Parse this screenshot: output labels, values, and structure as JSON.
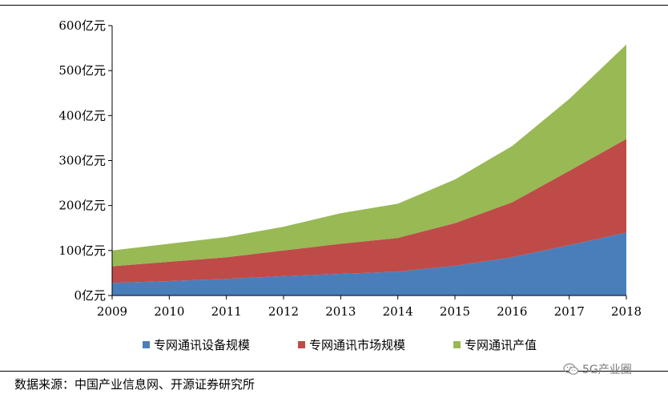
{
  "chart_data": {
    "type": "area",
    "stacked": true,
    "categories": [
      "2009",
      "2010",
      "2011",
      "2012",
      "2013",
      "2014",
      "2015",
      "2016",
      "2017",
      "2018"
    ],
    "series": [
      {
        "name": "专网通讯设备规模",
        "color": "#4a7ebb",
        "values": [
          28,
          32,
          37,
          43,
          48,
          53,
          66,
          85,
          112,
          140
        ]
      },
      {
        "name": "专网通讯市场规模",
        "color": "#be4b48",
        "values": [
          37,
          43,
          48,
          57,
          67,
          75,
          95,
          122,
          165,
          208
        ]
      },
      {
        "name": "专网通讯产值",
        "color": "#98b954",
        "values": [
          35,
          40,
          45,
          53,
          68,
          76,
          97,
          125,
          160,
          210
        ]
      }
    ],
    "ylim": [
      0,
      600
    ],
    "yticks": [
      0,
      100,
      200,
      300,
      400,
      500,
      600
    ],
    "ytick_labels": [
      "0亿元",
      "100亿元",
      "200亿元",
      "300亿元",
      "400亿元",
      "500亿元",
      "600亿元"
    ],
    "legend_position": "bottom",
    "grid": false
  },
  "source_text": "数据来源：中国产业信息网、开源证券研究所",
  "watermark": {
    "text": "5G产业圈",
    "icon": "wechat-icon"
  }
}
